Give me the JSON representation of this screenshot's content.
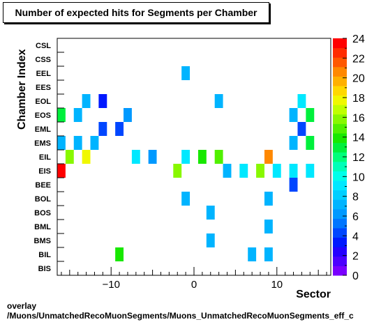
{
  "title": "Number of expected hits for Segments per Chamber",
  "footer": {
    "line1": "overlay",
    "line2": "/Muons/UnmatchedRecoMuonSegments/Muons_UnmatchedRecoMuonSegments_eff_c"
  },
  "chart_data": {
    "type": "heatmap",
    "title": "Number of expected hits for Segments per Chamber",
    "xlabel": "Sector",
    "ylabel": "Chamber Index",
    "xlim": [
      -16.5,
      16.5
    ],
    "x_ticks": [
      -10,
      0,
      10
    ],
    "x_tick_labels": [
      "−10",
      "0",
      "10"
    ],
    "y_categories": [
      "BIS",
      "BIL",
      "BMS",
      "BML",
      "BOS",
      "BOL",
      "BEE",
      "EIS",
      "EIL",
      "EMS",
      "EML",
      "EOS",
      "EOL",
      "EES",
      "EEL",
      "CSS",
      "CSL"
    ],
    "zlim": [
      0,
      24
    ],
    "z_ticks": [
      0,
      2,
      4,
      6,
      8,
      10,
      12,
      14,
      16,
      18,
      20,
      22,
      24
    ],
    "palette": [
      "#7a00ff",
      "#4c00ff",
      "#2400ff",
      "#0018ff",
      "#0046ff",
      "#0076ff",
      "#0099ff",
      "#00b4ff",
      "#00cfff",
      "#00e8ff",
      "#00ffea",
      "#00ffb8",
      "#00ff7a",
      "#00f03c",
      "#18e800",
      "#50f000",
      "#88f800",
      "#c0ff00",
      "#f0f800",
      "#ffd800",
      "#ffb000",
      "#ff8800",
      "#ff5800",
      "#ff2c00",
      "#ff0000"
    ],
    "cells": [
      {
        "x": -9,
        "y": "BIL",
        "z": 14
      },
      {
        "x": 7,
        "y": "BIL",
        "z": 7
      },
      {
        "x": 9,
        "y": "BIL",
        "z": 7
      },
      {
        "x": 2,
        "y": "BMS",
        "z": 7
      },
      {
        "x": 9,
        "y": "BML",
        "z": 7
      },
      {
        "x": 2,
        "y": "BOS",
        "z": 7
      },
      {
        "x": -1,
        "y": "BOL",
        "z": 7
      },
      {
        "x": 9,
        "y": "BOL",
        "z": 7
      },
      {
        "x": 12,
        "y": "BEE",
        "z": 4
      },
      {
        "x": -16,
        "y": "EIS",
        "z": 24
      },
      {
        "x": -2,
        "y": "EIS",
        "z": 16
      },
      {
        "x": 4,
        "y": "EIS",
        "z": 7
      },
      {
        "x": 6,
        "y": "EIS",
        "z": 9
      },
      {
        "x": 8,
        "y": "EIS",
        "z": 16
      },
      {
        "x": 10,
        "y": "EIS",
        "z": 9
      },
      {
        "x": 12,
        "y": "EIS",
        "z": 9
      },
      {
        "x": 14,
        "y": "EIS",
        "z": 9
      },
      {
        "x": -15,
        "y": "EIL",
        "z": 16
      },
      {
        "x": -13,
        "y": "EIL",
        "z": 18
      },
      {
        "x": -7,
        "y": "EIL",
        "z": 9
      },
      {
        "x": -5,
        "y": "EIL",
        "z": 6
      },
      {
        "x": -1,
        "y": "EIL",
        "z": 9
      },
      {
        "x": 1,
        "y": "EIL",
        "z": 14
      },
      {
        "x": 3,
        "y": "EIL",
        "z": 15
      },
      {
        "x": 9,
        "y": "EIL",
        "z": 21
      },
      {
        "x": -16,
        "y": "EMS",
        "z": 7
      },
      {
        "x": -14,
        "y": "EMS",
        "z": 7
      },
      {
        "x": -12,
        "y": "EMS",
        "z": 7
      },
      {
        "x": 12,
        "y": "EMS",
        "z": 7
      },
      {
        "x": 14,
        "y": "EMS",
        "z": 13
      },
      {
        "x": -11,
        "y": "EML",
        "z": 4
      },
      {
        "x": -9,
        "y": "EML",
        "z": 4
      },
      {
        "x": 13,
        "y": "EML",
        "z": 4
      },
      {
        "x": -16,
        "y": "EOS",
        "z": 13
      },
      {
        "x": -14,
        "y": "EOS",
        "z": 7
      },
      {
        "x": -8,
        "y": "EOS",
        "z": 6
      },
      {
        "x": 12,
        "y": "EOS",
        "z": 7
      },
      {
        "x": 14,
        "y": "EOS",
        "z": 13
      },
      {
        "x": -13,
        "y": "EOL",
        "z": 7
      },
      {
        "x": -11,
        "y": "EOL",
        "z": 3
      },
      {
        "x": 3,
        "y": "EOL",
        "z": 7
      },
      {
        "x": 13,
        "y": "EOL",
        "z": 9
      },
      {
        "x": -1,
        "y": "EEL",
        "z": 7
      }
    ]
  }
}
